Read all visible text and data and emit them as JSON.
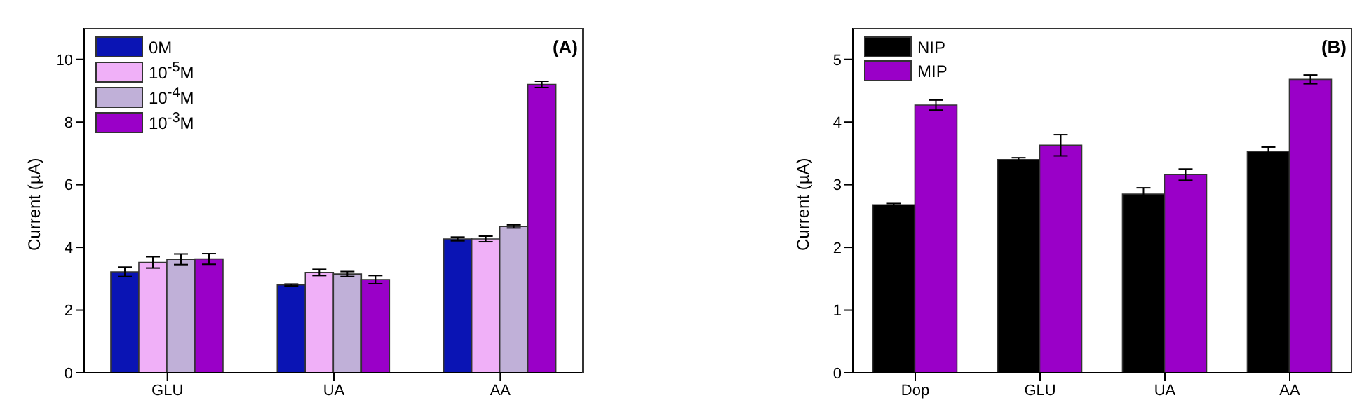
{
  "chart_data": [
    {
      "type": "bar",
      "categories": [
        "GLU",
        "UA",
        "AA"
      ],
      "ylabel": "Current (µA)",
      "ylim": [
        0,
        11
      ],
      "yticks": [
        0,
        2,
        4,
        6,
        8,
        10
      ],
      "grid": false,
      "legend": "top left",
      "annotations": [
        "(A)"
      ],
      "series": [
        {
          "name": "0M",
          "color": "#0a14b4",
          "values": [
            3.22,
            2.8,
            4.27
          ],
          "errors": [
            0.15,
            0.03,
            0.06
          ]
        },
        {
          "name": "10$^{-5}$M",
          "color": "#f0b0f8",
          "values": [
            3.52,
            3.2,
            4.27
          ],
          "errors": [
            0.18,
            0.1,
            0.09
          ]
        },
        {
          "name": "10$^{-4}$M",
          "color": "#c0b0d8",
          "values": [
            3.62,
            3.15,
            4.67
          ],
          "errors": [
            0.17,
            0.08,
            0.05
          ]
        },
        {
          "name": "10$^{-3}$M",
          "color": "#9a00c8",
          "values": [
            3.63,
            2.97,
            9.2
          ],
          "errors": [
            0.17,
            0.13,
            0.1
          ]
        }
      ]
    },
    {
      "type": "bar",
      "categories": [
        "Dop",
        "GLU",
        "UA",
        "AA"
      ],
      "ylabel": "Current (µA)",
      "ylim": [
        0,
        5.5
      ],
      "yticks": [
        0,
        1,
        2,
        3,
        4,
        5
      ],
      "grid": false,
      "legend": "top left",
      "annotations": [
        "(B)"
      ],
      "series": [
        {
          "name": "NIP",
          "color": "#000000",
          "values": [
            2.68,
            3.4,
            2.85,
            3.53
          ],
          "errors": [
            0.02,
            0.03,
            0.1,
            0.07
          ]
        },
        {
          "name": "MIP",
          "color": "#9a00c8",
          "values": [
            4.27,
            3.63,
            3.16,
            4.68
          ],
          "errors": [
            0.08,
            0.17,
            0.09,
            0.07
          ]
        }
      ]
    }
  ]
}
